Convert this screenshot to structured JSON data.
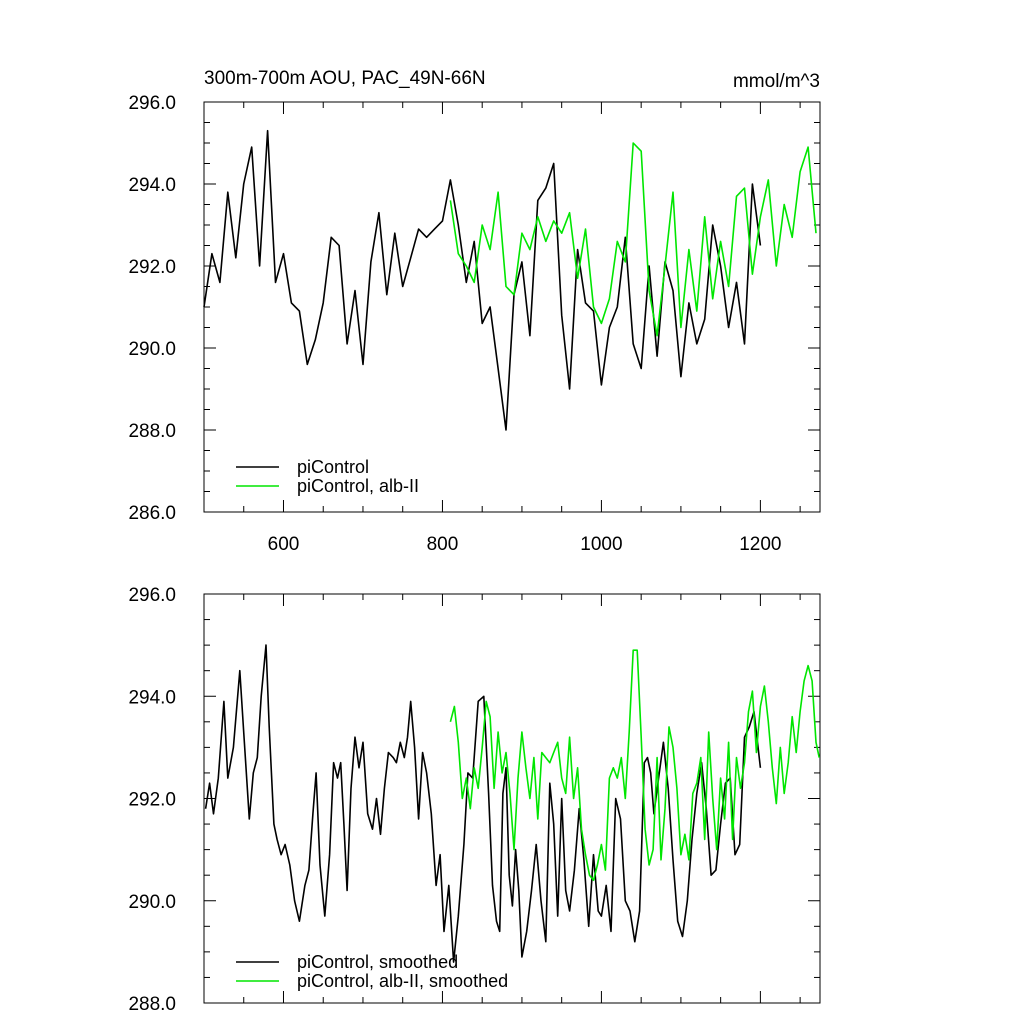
{
  "colors": {
    "piControl": "#000000",
    "albII": "#00e600",
    "axis": "#000000",
    "background": "#ffffff"
  },
  "header": {
    "title": "300m-700m AOU, PAC_49N-66N",
    "units": "mmol/m^3"
  },
  "chart_data": [
    {
      "type": "line",
      "panel": "top",
      "title": "300m-700m AOU, PAC_49N-66N",
      "units": "mmol/m^3",
      "xlim": [
        500,
        1275
      ],
      "ylim": [
        286.0,
        296.0
      ],
      "xticks": [
        600,
        800,
        1000,
        1200
      ],
      "xtick_labels": [
        "600",
        "800",
        "1000",
        "1200"
      ],
      "yticks": [
        286.0,
        288.0,
        290.0,
        292.0,
        294.0,
        296.0
      ],
      "ytick_labels": [
        "286.0",
        "288.0",
        "290.0",
        "292.0",
        "294.0",
        "296.0"
      ],
      "legend": {
        "position": "bottom-left",
        "entries": [
          "piControl",
          "piControl, alb-II"
        ]
      },
      "series": [
        {
          "name": "piControl",
          "color": "#000000",
          "x": [
            500,
            510,
            520,
            530,
            540,
            550,
            560,
            570,
            580,
            590,
            600,
            610,
            620,
            630,
            640,
            650,
            660,
            670,
            680,
            690,
            700,
            710,
            720,
            730,
            740,
            750,
            760,
            770,
            780,
            790,
            800,
            810,
            820,
            830,
            840,
            850,
            860,
            870,
            880,
            890,
            900,
            910,
            920,
            930,
            940,
            950,
            960,
            970,
            980,
            990,
            1000,
            1010,
            1020,
            1030,
            1040,
            1050,
            1060,
            1070,
            1080,
            1090,
            1100,
            1110,
            1120,
            1130,
            1140,
            1150,
            1160,
            1170,
            1180,
            1190,
            1200
          ],
          "y": [
            291.0,
            292.3,
            291.6,
            293.8,
            292.2,
            294.0,
            294.9,
            292.0,
            295.3,
            291.6,
            292.3,
            291.1,
            290.9,
            289.6,
            290.2,
            291.1,
            292.7,
            292.5,
            290.1,
            291.4,
            289.6,
            292.1,
            293.3,
            291.3,
            292.8,
            291.5,
            292.2,
            292.9,
            292.7,
            292.9,
            293.1,
            294.1,
            293.0,
            291.6,
            292.6,
            290.6,
            291.0,
            289.5,
            288.0,
            291.3,
            292.1,
            290.3,
            293.6,
            293.9,
            294.5,
            290.8,
            289.0,
            292.4,
            291.1,
            290.9,
            289.1,
            290.5,
            291.0,
            292.7,
            290.1,
            289.5,
            292.0,
            289.8,
            292.1,
            291.4,
            289.3,
            291.1,
            290.1,
            290.7,
            293.0,
            292.0,
            290.5,
            291.6,
            290.1,
            294.0,
            292.5
          ]
        },
        {
          "name": "piControl, alb-II",
          "color": "#00e600",
          "x": [
            810,
            820,
            830,
            840,
            850,
            860,
            870,
            880,
            890,
            900,
            910,
            920,
            930,
            940,
            950,
            960,
            970,
            980,
            990,
            1000,
            1010,
            1020,
            1030,
            1040,
            1050,
            1060,
            1070,
            1080,
            1090,
            1100,
            1110,
            1120,
            1130,
            1140,
            1150,
            1160,
            1170,
            1180,
            1190,
            1200,
            1210,
            1220,
            1230,
            1240,
            1250,
            1260,
            1270
          ],
          "y": [
            293.6,
            292.3,
            292.0,
            291.6,
            293.0,
            292.4,
            293.8,
            291.5,
            291.3,
            292.8,
            292.4,
            293.2,
            292.6,
            293.1,
            292.8,
            293.3,
            291.7,
            292.9,
            291.0,
            290.6,
            291.2,
            292.6,
            292.1,
            295.0,
            294.8,
            291.4,
            290.3,
            292.0,
            293.8,
            290.5,
            292.4,
            290.9,
            293.2,
            291.2,
            292.6,
            291.5,
            293.7,
            293.9,
            291.8,
            293.2,
            294.1,
            292.0,
            293.5,
            292.7,
            294.3,
            294.9,
            292.8
          ]
        }
      ]
    },
    {
      "type": "line",
      "panel": "bottom",
      "xlim": [
        500,
        1275
      ],
      "ylim": [
        288.0,
        296.0
      ],
      "xticks": [
        600,
        800,
        1000,
        1200
      ],
      "yticks": [
        288.0,
        290.0,
        292.0,
        294.0,
        296.0
      ],
      "ytick_labels": [
        "288.0",
        "290.0",
        "292.0",
        "294.0",
        "296.0"
      ],
      "legend": {
        "position": "bottom-left",
        "entries": [
          "piControl, smoothed",
          "piControl, alb-II, smoothed"
        ]
      },
      "series": [
        {
          "name": "piControl, smoothed",
          "color": "#000000",
          "x": [
            502,
            507,
            512,
            518,
            525,
            530,
            537,
            545,
            550,
            557,
            562,
            567,
            572,
            578,
            582,
            588,
            592,
            597,
            602,
            608,
            614,
            620,
            627,
            632,
            637,
            641,
            646,
            652,
            658,
            663,
            668,
            672,
            676,
            680,
            685,
            690,
            695,
            700,
            706,
            712,
            717,
            722,
            727,
            732,
            738,
            742,
            747,
            752,
            756,
            760,
            765,
            770,
            775,
            780,
            786,
            792,
            797,
            802,
            808,
            814,
            820,
            827,
            832,
            838,
            845,
            852,
            858,
            863,
            868,
            872,
            876,
            880,
            884,
            888,
            892,
            896,
            900,
            906,
            912,
            918,
            924,
            930,
            935,
            940,
            945,
            950,
            955,
            960,
            966,
            972,
            978,
            984,
            990,
            996,
            1000,
            1006,
            1012,
            1018,
            1024,
            1030,
            1036,
            1042,
            1048,
            1054,
            1058,
            1062,
            1066,
            1072,
            1078,
            1084,
            1090,
            1096,
            1102,
            1108,
            1114,
            1120,
            1126,
            1132,
            1138,
            1144,
            1150,
            1156,
            1162,
            1168,
            1174,
            1180,
            1186,
            1192,
            1200
          ],
          "y": [
            291.8,
            292.3,
            291.7,
            292.4,
            293.9,
            292.4,
            293.0,
            294.5,
            293.3,
            291.6,
            292.5,
            292.8,
            294.0,
            295.0,
            293.4,
            291.5,
            291.2,
            290.9,
            291.1,
            290.7,
            290.0,
            289.6,
            290.3,
            290.6,
            291.7,
            292.5,
            290.7,
            289.7,
            290.9,
            292.7,
            292.4,
            292.7,
            291.5,
            290.2,
            292.2,
            293.2,
            292.6,
            293.1,
            291.7,
            291.4,
            292.0,
            291.3,
            292.2,
            292.9,
            292.8,
            292.7,
            293.1,
            292.8,
            293.2,
            293.9,
            293.0,
            291.6,
            292.9,
            292.5,
            291.7,
            290.3,
            290.9,
            289.4,
            290.3,
            288.8,
            289.7,
            291.1,
            292.5,
            292.4,
            293.9,
            294.0,
            292.1,
            290.3,
            289.6,
            289.4,
            292.1,
            292.6,
            290.5,
            289.9,
            291.0,
            290.2,
            288.9,
            289.4,
            290.2,
            291.1,
            290.0,
            289.2,
            292.3,
            291.5,
            289.7,
            292.0,
            290.2,
            289.8,
            290.6,
            291.8,
            290.8,
            289.5,
            290.9,
            289.8,
            289.7,
            290.3,
            289.4,
            292.0,
            291.6,
            290.0,
            289.8,
            289.2,
            289.8,
            292.7,
            292.8,
            292.5,
            291.7,
            292.4,
            293.1,
            292.2,
            290.8,
            289.6,
            289.3,
            290.0,
            291.2,
            292.1,
            292.7,
            291.8,
            290.5,
            290.6,
            291.5,
            292.3,
            292.4,
            290.9,
            291.1,
            293.2,
            293.4,
            293.7,
            292.6
          ]
        },
        {
          "name": "piControl, alb-II, smoothed",
          "color": "#00e600",
          "x": [
            810,
            815,
            820,
            825,
            830,
            835,
            840,
            845,
            850,
            855,
            860,
            865,
            870,
            875,
            880,
            885,
            890,
            895,
            900,
            905,
            910,
            915,
            920,
            925,
            930,
            935,
            940,
            945,
            950,
            955,
            960,
            965,
            970,
            975,
            980,
            985,
            990,
            995,
            1000,
            1005,
            1010,
            1015,
            1020,
            1025,
            1030,
            1035,
            1040,
            1045,
            1050,
            1055,
            1060,
            1065,
            1070,
            1075,
            1080,
            1085,
            1090,
            1095,
            1100,
            1105,
            1110,
            1115,
            1120,
            1125,
            1130,
            1135,
            1140,
            1145,
            1150,
            1155,
            1160,
            1165,
            1170,
            1175,
            1180,
            1185,
            1190,
            1195,
            1200,
            1205,
            1210,
            1215,
            1220,
            1225,
            1230,
            1235,
            1240,
            1245,
            1250,
            1255,
            1260,
            1265,
            1270,
            1274
          ],
          "y": [
            293.5,
            293.8,
            293.1,
            292.0,
            292.4,
            291.8,
            292.6,
            292.2,
            293.0,
            293.9,
            293.6,
            292.2,
            293.3,
            292.5,
            292.9,
            292.1,
            291.0,
            292.4,
            293.3,
            292.6,
            292.0,
            292.8,
            291.6,
            292.9,
            292.8,
            292.7,
            292.9,
            293.1,
            292.4,
            292.1,
            293.2,
            292.0,
            292.6,
            291.4,
            290.9,
            290.5,
            290.4,
            290.7,
            291.1,
            290.6,
            292.4,
            292.6,
            292.4,
            292.8,
            292.0,
            293.3,
            294.9,
            294.9,
            293.2,
            291.4,
            290.7,
            291.0,
            292.8,
            290.8,
            291.8,
            293.4,
            293.0,
            292.2,
            290.9,
            291.3,
            290.8,
            292.1,
            292.3,
            292.8,
            291.2,
            293.3,
            292.0,
            291.0,
            292.4,
            291.6,
            293.1,
            291.2,
            292.8,
            292.2,
            292.7,
            293.7,
            294.1,
            292.9,
            293.8,
            294.2,
            293.5,
            292.6,
            291.9,
            293.0,
            292.1,
            292.7,
            293.6,
            292.9,
            293.7,
            294.3,
            294.6,
            294.3,
            293.1,
            292.8
          ]
        }
      ]
    }
  ]
}
